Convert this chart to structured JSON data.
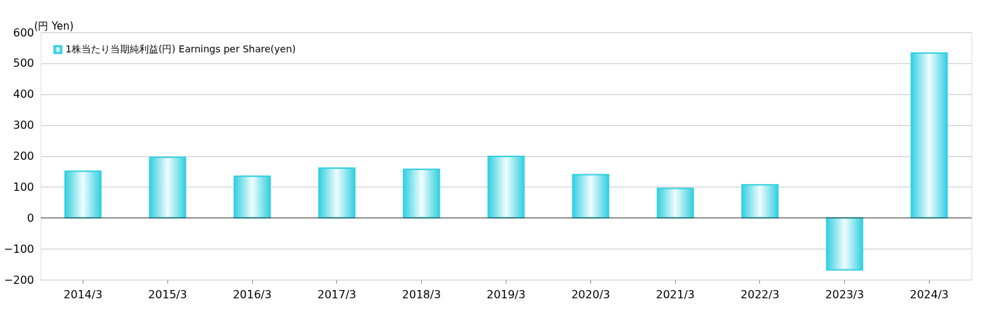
{
  "chart_data": {
    "type": "bar",
    "ylabel": "(円 Yen)",
    "categories": [
      "2014/3",
      "2015/3",
      "2016/3",
      "2017/3",
      "2018/3",
      "2019/3",
      "2020/3",
      "2021/3",
      "2022/3",
      "2023/3",
      "2024/3"
    ],
    "series": [
      {
        "name": "1株当たり当期純利益(円) Earnings per Share(yen)",
        "color": "#33d0e0",
        "values": [
          151,
          196,
          135,
          161,
          157,
          199,
          140,
          95,
          107,
          -168,
          533
        ]
      }
    ],
    "ylim": [
      -200,
      600
    ],
    "yticks": [
      -200,
      -100,
      0,
      100,
      200,
      300,
      400,
      500,
      600
    ],
    "grid": "y",
    "legend": "top left"
  }
}
